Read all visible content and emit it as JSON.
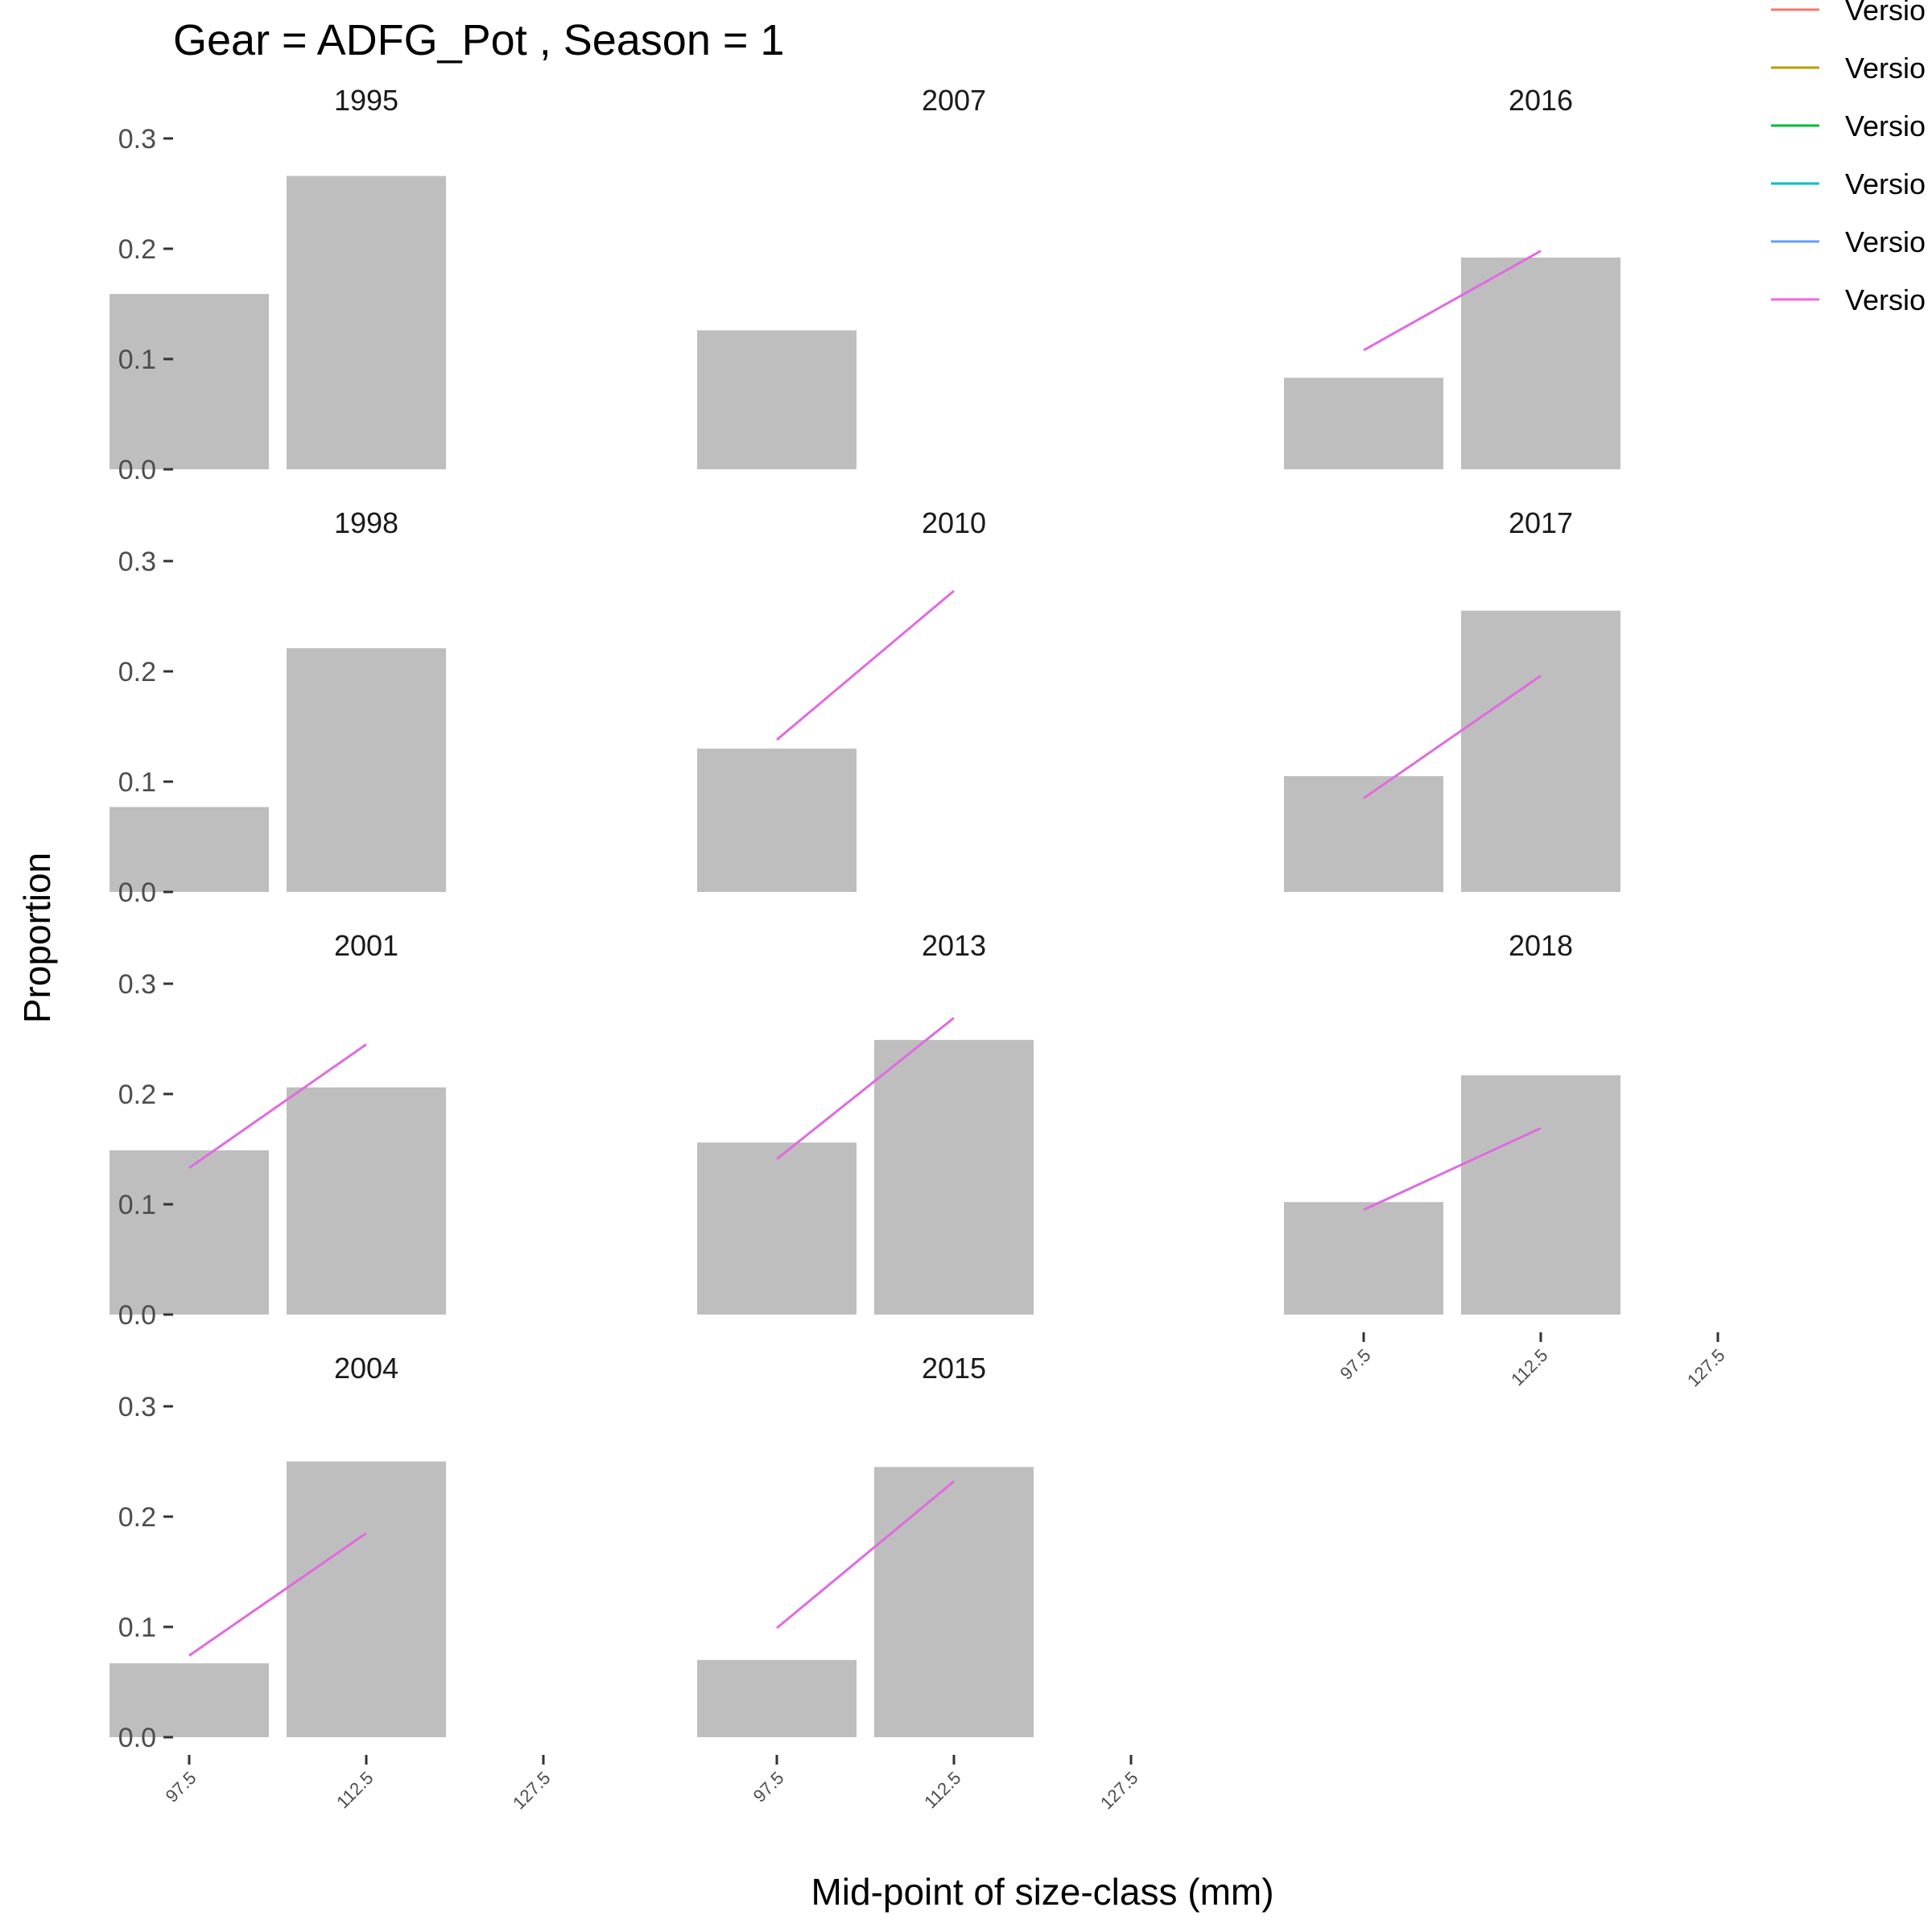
{
  "chart_data": {
    "type": "bar",
    "title": "Gear = ADFG_Pot , Season = 1",
    "xlabel": "Mid-point of size-class (mm)",
    "ylabel": "Proportion",
    "x_ticks": [
      "97.5",
      "112.5",
      "127.5"
    ],
    "y_ticks": [
      "0.0",
      "0.1",
      "0.2",
      "0.3"
    ],
    "ylim": [
      0,
      0.3
    ],
    "grid": false,
    "legend_position": "top-right",
    "legend_items": [
      {
        "label": "Versio",
        "color": "#F8766D"
      },
      {
        "label": "Versio",
        "color": "#B79F00"
      },
      {
        "label": "Versio",
        "color": "#00BA38"
      },
      {
        "label": "Versio",
        "color": "#00BFC4"
      },
      {
        "label": "Versio",
        "color": "#619CFF"
      },
      {
        "label": "Versio",
        "color": "#F564E3"
      }
    ],
    "bar_color": "#bebebe",
    "line_color": "#E06BE0",
    "panels": [
      {
        "year": "1995",
        "row": 0,
        "col": 0,
        "obs": [
          0.159,
          0.266
        ],
        "pred": null
      },
      {
        "year": "2007",
        "row": 0,
        "col": 1,
        "obs": [
          0.126,
          null
        ],
        "pred": null
      },
      {
        "year": "2016",
        "row": 0,
        "col": 2,
        "obs": [
          0.083,
          0.192
        ],
        "pred": [
          0.108,
          0.198
        ]
      },
      {
        "year": "1998",
        "row": 1,
        "col": 0,
        "obs": [
          0.077,
          0.221
        ],
        "pred": null
      },
      {
        "year": "2010",
        "row": 1,
        "col": 1,
        "obs": [
          0.13,
          null
        ],
        "pred": [
          0.138,
          0.273
        ]
      },
      {
        "year": "2017",
        "row": 1,
        "col": 2,
        "obs": [
          0.105,
          0.255
        ],
        "pred": [
          0.085,
          0.196
        ]
      },
      {
        "year": "2001",
        "row": 2,
        "col": 0,
        "obs": [
          0.149,
          0.206
        ],
        "pred": [
          0.133,
          0.245
        ]
      },
      {
        "year": "2013",
        "row": 2,
        "col": 1,
        "obs": [
          0.156,
          0.249
        ],
        "pred": [
          0.141,
          0.269
        ]
      },
      {
        "year": "2018",
        "row": 2,
        "col": 2,
        "obs": [
          0.102,
          0.217
        ],
        "pred": [
          0.095,
          0.169
        ]
      },
      {
        "year": "2004",
        "row": 3,
        "col": 0,
        "obs": [
          0.067,
          0.25
        ],
        "pred": [
          0.074,
          0.185
        ]
      },
      {
        "year": "2015",
        "row": 3,
        "col": 1,
        "obs": [
          0.07,
          0.245
        ],
        "pred": [
          0.099,
          0.232
        ]
      }
    ]
  }
}
